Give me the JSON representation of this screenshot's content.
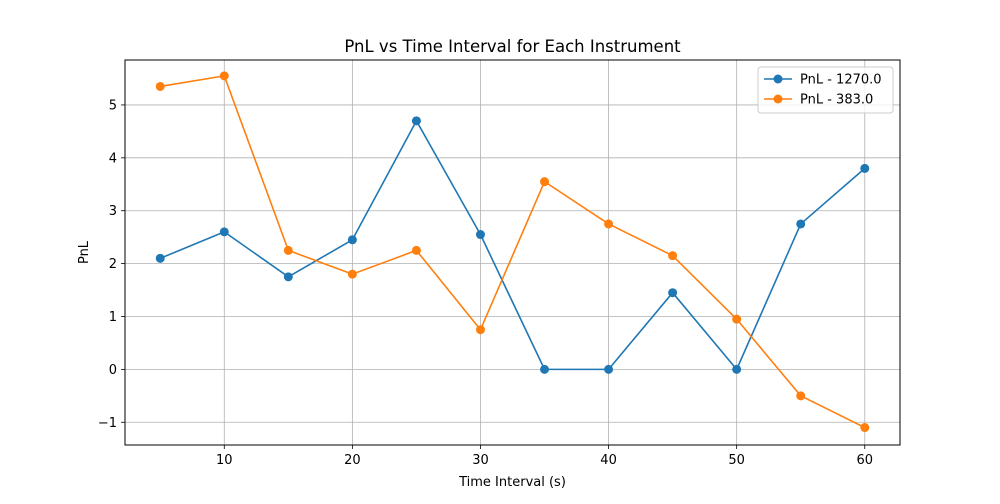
{
  "chart_data": {
    "type": "line",
    "title": "PnL vs Time Interval for Each Instrument",
    "xlabel": "Time Interval (s)",
    "ylabel": "PnL",
    "xlim": [
      2.25,
      62.75
    ],
    "ylim": [
      -1.43,
      5.85
    ],
    "x_ticks": [
      10,
      20,
      30,
      40,
      50,
      60
    ],
    "y_ticks": [
      -1,
      0,
      1,
      2,
      3,
      4,
      5
    ],
    "x_tick_labels": [
      "10",
      "20",
      "30",
      "40",
      "50",
      "60"
    ],
    "y_tick_labels": [
      "−1",
      "0",
      "1",
      "2",
      "3",
      "4",
      "5"
    ],
    "grid": true,
    "legend_position": "top-right",
    "x": [
      5,
      10,
      15,
      20,
      25,
      30,
      35,
      40,
      45,
      50,
      55,
      60
    ],
    "series": [
      {
        "name": "PnL - 1270.0",
        "color": "#1f77b4",
        "values": [
          2.1,
          2.6,
          1.75,
          2.45,
          4.7,
          2.55,
          0.0,
          0.0,
          1.45,
          0.0,
          2.75,
          3.8
        ]
      },
      {
        "name": "PnL - 383.0",
        "color": "#ff7f0e",
        "values": [
          5.35,
          5.55,
          2.25,
          1.8,
          2.25,
          0.75,
          3.55,
          2.75,
          2.15,
          0.95,
          -0.5,
          -1.1
        ]
      }
    ]
  }
}
